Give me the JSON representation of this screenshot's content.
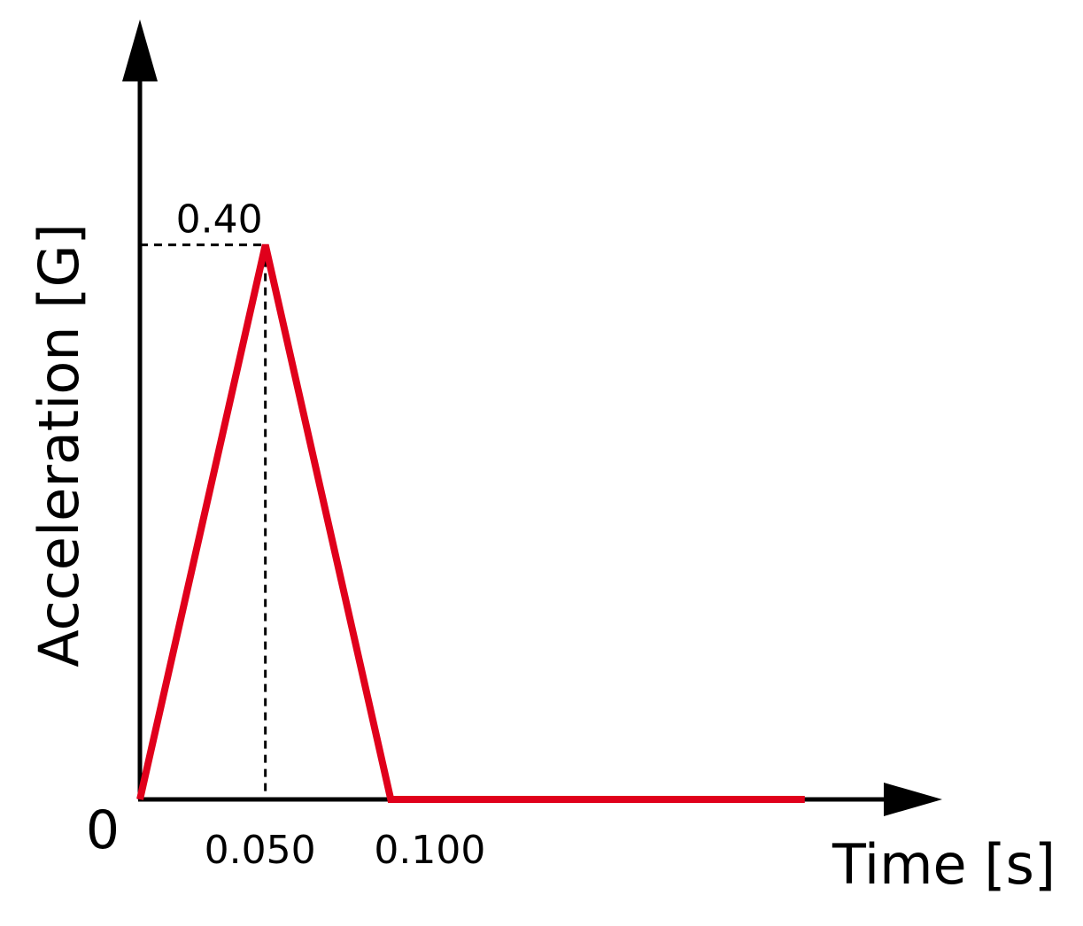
{
  "chart_data": {
    "type": "line",
    "title": "",
    "xlabel": "Time [s]",
    "ylabel": "Acceleration [G]",
    "x": [
      0,
      0.05,
      0.1,
      0.265
    ],
    "series": [
      {
        "values": [
          0,
          0.4,
          0,
          0
        ],
        "color": "#e0001b"
      }
    ],
    "xlim": [
      0,
      0.3
    ],
    "ylim": [
      0,
      0.5
    ],
    "grid": false,
    "legend": "none",
    "origin_label": "0",
    "x_tick_labels": [
      {
        "value": 0.05,
        "label": "0.050"
      },
      {
        "value": 0.1,
        "label": "0.100"
      }
    ],
    "peak": {
      "x": 0.05,
      "y": 0.4,
      "label": "0.40"
    },
    "axis_color": "#000000"
  }
}
